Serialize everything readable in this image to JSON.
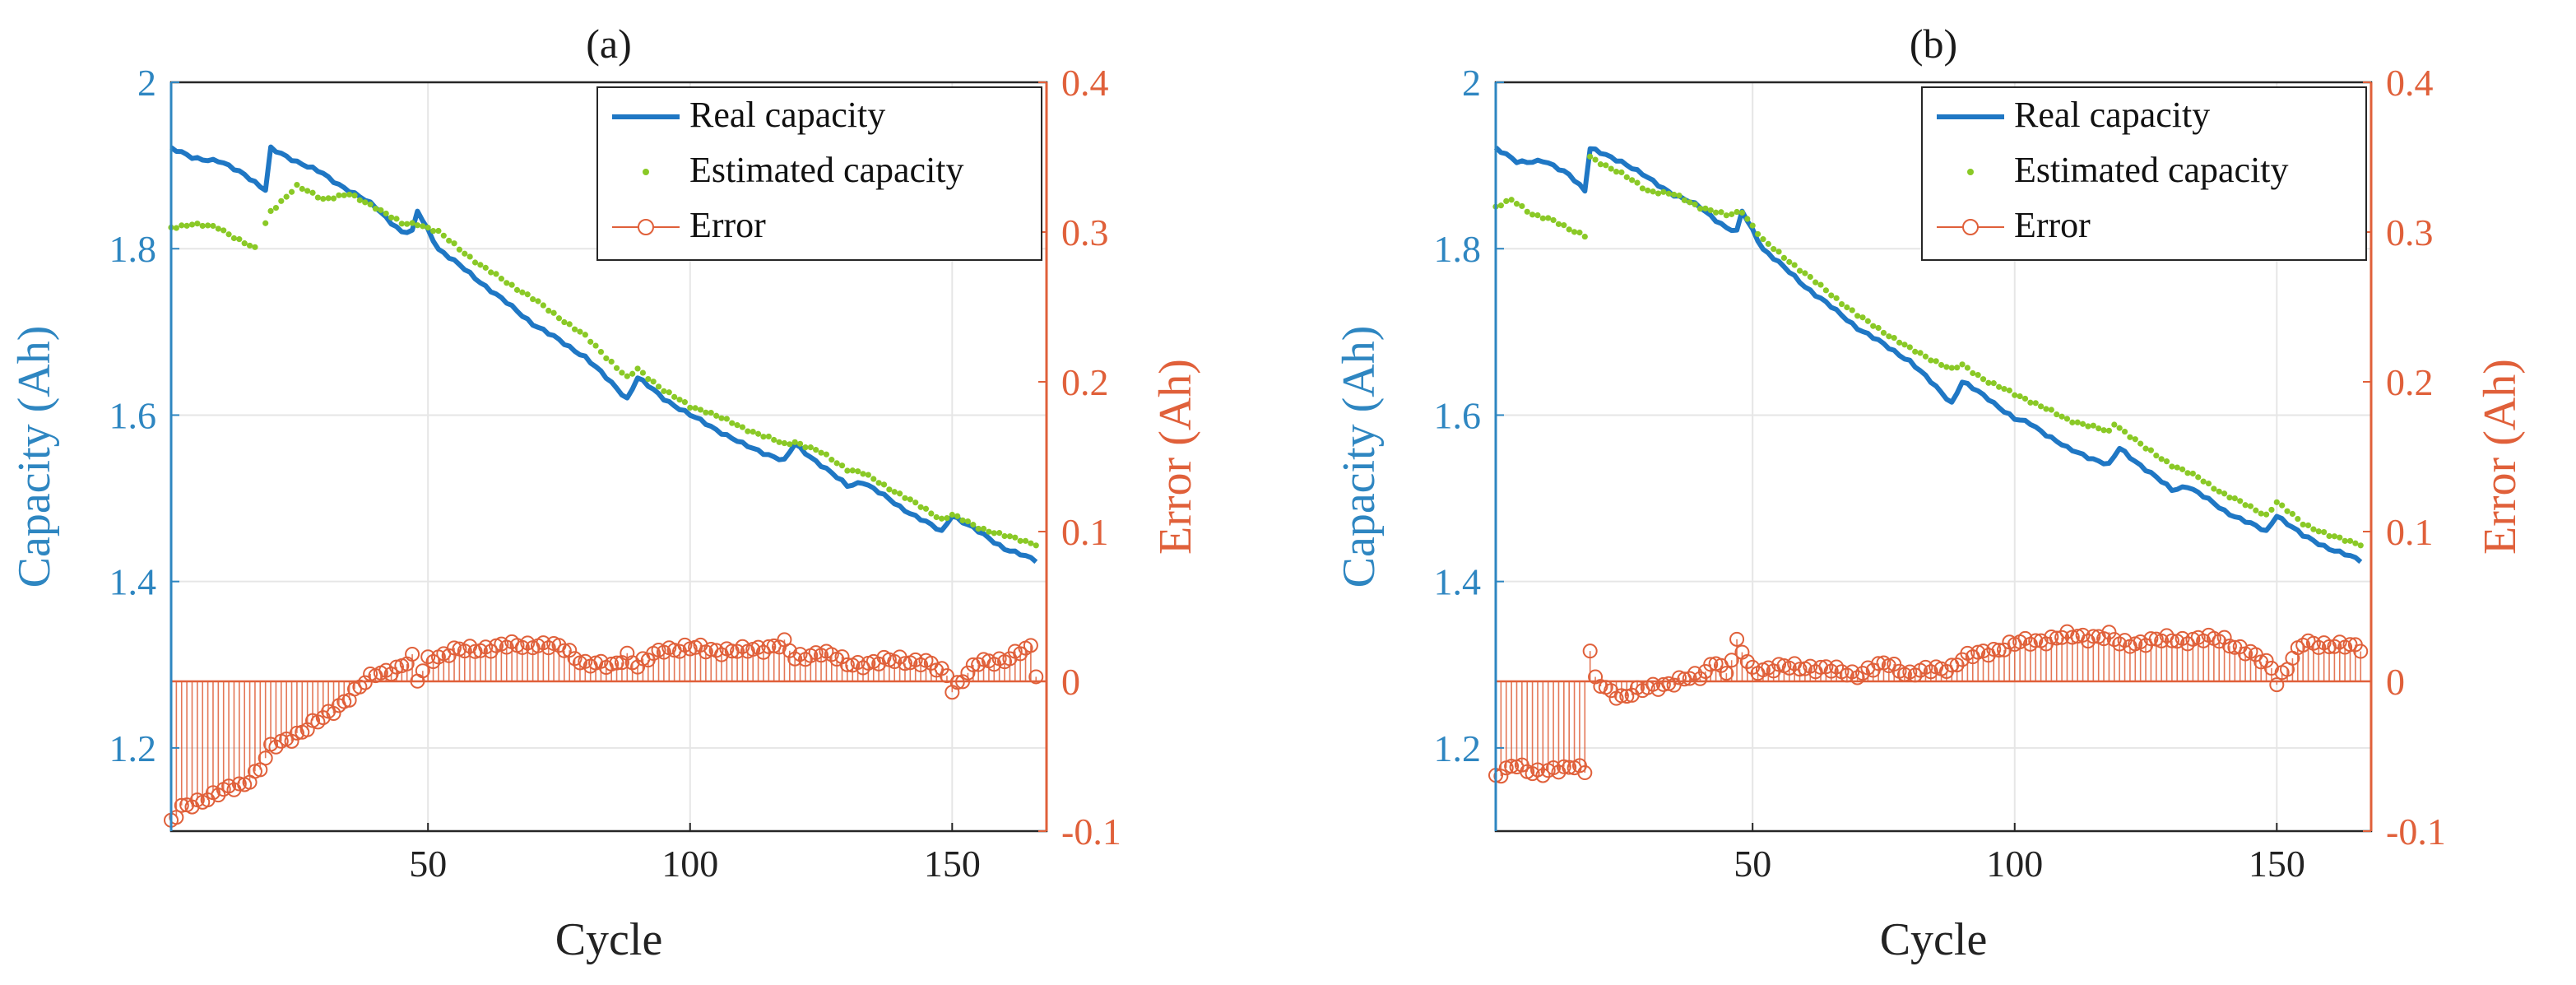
{
  "chart_data": [
    {
      "type": "line",
      "title": "(a)",
      "xlabel": "Cycle",
      "ylabel_left": "Capacity (Ah)",
      "ylabel_right": "Error (Ah)",
      "xlim": [
        1,
        168
      ],
      "ylim_left": [
        1.1,
        2.0
      ],
      "ylim_right": [
        -0.1,
        0.4
      ],
      "xticks": [
        "50",
        "100",
        "150"
      ],
      "yticks_left": [
        "1.2",
        "1.4",
        "1.6",
        "1.8",
        "2"
      ],
      "yticks_right": [
        "-0.1",
        "0",
        "0.1",
        "0.2",
        "0.3",
        "0.4"
      ],
      "grid": true,
      "legend": {
        "position": "top-right",
        "entries": [
          "Real capacity",
          "Estimated capacity",
          "Error"
        ]
      },
      "colors": {
        "real": "#1f77c4",
        "estimated": "#8ac926",
        "error": "#e0603a"
      },
      "real_anchors": [
        [
          1,
          1.92
        ],
        [
          5,
          1.91
        ],
        [
          10,
          1.905
        ],
        [
          15,
          1.89
        ],
        [
          19,
          1.87
        ],
        [
          20,
          1.92
        ],
        [
          25,
          1.905
        ],
        [
          30,
          1.89
        ],
        [
          31,
          1.885
        ],
        [
          35,
          1.87
        ],
        [
          40,
          1.85
        ],
        [
          45,
          1.82
        ],
        [
          47,
          1.82
        ],
        [
          48,
          1.845
        ],
        [
          52,
          1.8
        ],
        [
          60,
          1.76
        ],
        [
          70,
          1.71
        ],
        [
          80,
          1.67
        ],
        [
          88,
          1.62
        ],
        [
          90,
          1.645
        ],
        [
          95,
          1.62
        ],
        [
          100,
          1.6
        ],
        [
          103,
          1.59
        ],
        [
          110,
          1.565
        ],
        [
          118,
          1.545
        ],
        [
          120,
          1.565
        ],
        [
          125,
          1.54
        ],
        [
          130,
          1.515
        ],
        [
          133,
          1.52
        ],
        [
          140,
          1.49
        ],
        [
          148,
          1.46
        ],
        [
          150,
          1.48
        ],
        [
          155,
          1.46
        ],
        [
          160,
          1.44
        ],
        [
          166,
          1.425
        ]
      ],
      "estimated_anchors": [
        [
          1,
          1.825
        ],
        [
          5,
          1.83
        ],
        [
          10,
          1.825
        ],
        [
          17,
          1.8
        ],
        [
          20,
          1.845
        ],
        [
          25,
          1.875
        ],
        [
          30,
          1.86
        ],
        [
          35,
          1.865
        ],
        [
          40,
          1.85
        ],
        [
          45,
          1.83
        ],
        [
          48,
          1.83
        ],
        [
          52,
          1.82
        ],
        [
          60,
          1.78
        ],
        [
          70,
          1.74
        ],
        [
          80,
          1.695
        ],
        [
          88,
          1.645
        ],
        [
          90,
          1.655
        ],
        [
          95,
          1.63
        ],
        [
          100,
          1.61
        ],
        [
          103,
          1.605
        ],
        [
          110,
          1.585
        ],
        [
          118,
          1.565
        ],
        [
          120,
          1.568
        ],
        [
          125,
          1.555
        ],
        [
          130,
          1.535
        ],
        [
          133,
          1.53
        ],
        [
          140,
          1.505
        ],
        [
          148,
          1.475
        ],
        [
          150,
          1.48
        ],
        [
          155,
          1.465
        ],
        [
          160,
          1.455
        ],
        [
          166,
          1.445
        ]
      ],
      "estimated_gap": [
        17,
        19
      ],
      "error_anchors": [
        [
          1,
          -0.095
        ],
        [
          3,
          -0.085
        ],
        [
          6,
          -0.08
        ],
        [
          10,
          -0.075
        ],
        [
          15,
          -0.068
        ],
        [
          18,
          -0.058
        ],
        [
          20,
          -0.045
        ],
        [
          25,
          -0.035
        ],
        [
          30,
          -0.025
        ],
        [
          35,
          -0.01
        ],
        [
          40,
          0.005
        ],
        [
          45,
          0.01
        ],
        [
          47,
          0.015
        ],
        [
          48,
          0.0
        ],
        [
          50,
          0.015
        ],
        [
          55,
          0.02
        ],
        [
          60,
          0.022
        ],
        [
          70,
          0.025
        ],
        [
          76,
          0.022
        ],
        [
          80,
          0.012
        ],
        [
          85,
          0.01
        ],
        [
          88,
          0.018
        ],
        [
          90,
          0.01
        ],
        [
          95,
          0.022
        ],
        [
          100,
          0.022
        ],
        [
          110,
          0.02
        ],
        [
          118,
          0.025
        ],
        [
          120,
          0.015
        ],
        [
          125,
          0.02
        ],
        [
          130,
          0.012
        ],
        [
          135,
          0.012
        ],
        [
          140,
          0.015
        ],
        [
          145,
          0.012
        ],
        [
          149,
          0.005
        ],
        [
          150,
          -0.005
        ],
        [
          155,
          0.012
        ],
        [
          160,
          0.015
        ],
        [
          165,
          0.022
        ],
        [
          166,
          0.005
        ]
      ]
    },
    {
      "type": "line",
      "title": "(b)",
      "xlabel": "Cycle",
      "ylabel_left": "Capacity (Ah)",
      "ylabel_right": "Error (Ah)",
      "xlim": [
        1,
        168
      ],
      "ylim_left": [
        1.1,
        2.0
      ],
      "ylim_right": [
        -0.1,
        0.4
      ],
      "xticks": [
        "50",
        "100",
        "150"
      ],
      "yticks_left": [
        "1.2",
        "1.4",
        "1.6",
        "1.8",
        "2"
      ],
      "yticks_right": [
        "-0.1",
        "0",
        "0.1",
        "0.2",
        "0.3",
        "0.4"
      ],
      "grid": true,
      "legend": {
        "position": "top-right",
        "entries": [
          "Real capacity",
          "Estimated capacity",
          "Error"
        ]
      },
      "colors": {
        "real": "#1f77c4",
        "estimated": "#8ac926",
        "error": "#e0603a"
      },
      "real_anchors": [
        [
          1,
          1.92
        ],
        [
          5,
          1.905
        ],
        [
          10,
          1.905
        ],
        [
          15,
          1.89
        ],
        [
          18,
          1.87
        ],
        [
          19,
          1.92
        ],
        [
          25,
          1.905
        ],
        [
          30,
          1.885
        ],
        [
          35,
          1.865
        ],
        [
          40,
          1.85
        ],
        [
          45,
          1.825
        ],
        [
          47,
          1.82
        ],
        [
          48,
          1.845
        ],
        [
          52,
          1.8
        ],
        [
          60,
          1.755
        ],
        [
          70,
          1.705
        ],
        [
          80,
          1.665
        ],
        [
          88,
          1.615
        ],
        [
          90,
          1.64
        ],
        [
          95,
          1.62
        ],
        [
          100,
          1.595
        ],
        [
          103,
          1.59
        ],
        [
          110,
          1.56
        ],
        [
          118,
          1.54
        ],
        [
          120,
          1.56
        ],
        [
          125,
          1.535
        ],
        [
          130,
          1.51
        ],
        [
          133,
          1.515
        ],
        [
          140,
          1.485
        ],
        [
          148,
          1.46
        ],
        [
          150,
          1.48
        ],
        [
          155,
          1.455
        ],
        [
          160,
          1.44
        ],
        [
          166,
          1.425
        ]
      ],
      "estimated_anchors": [
        [
          1,
          1.85
        ],
        [
          4,
          1.86
        ],
        [
          8,
          1.84
        ],
        [
          12,
          1.835
        ],
        [
          16,
          1.82
        ],
        [
          18,
          1.815
        ],
        [
          19,
          1.91
        ],
        [
          25,
          1.89
        ],
        [
          30,
          1.87
        ],
        [
          35,
          1.865
        ],
        [
          40,
          1.85
        ],
        [
          45,
          1.84
        ],
        [
          48,
          1.845
        ],
        [
          52,
          1.81
        ],
        [
          60,
          1.77
        ],
        [
          70,
          1.72
        ],
        [
          80,
          1.68
        ],
        [
          88,
          1.655
        ],
        [
          90,
          1.66
        ],
        [
          95,
          1.64
        ],
        [
          100,
          1.625
        ],
        [
          102,
          1.62
        ],
        [
          110,
          1.595
        ],
        [
          118,
          1.58
        ],
        [
          119,
          1.59
        ],
        [
          125,
          1.56
        ],
        [
          130,
          1.54
        ],
        [
          135,
          1.525
        ],
        [
          140,
          1.505
        ],
        [
          148,
          1.48
        ],
        [
          150,
          1.495
        ],
        [
          155,
          1.47
        ],
        [
          160,
          1.455
        ],
        [
          166,
          1.445
        ]
      ],
      "estimated_gap": [
        18,
        19
      ],
      "error_anchors": [
        [
          1,
          -0.065
        ],
        [
          3,
          -0.06
        ],
        [
          5,
          -0.055
        ],
        [
          8,
          -0.06
        ],
        [
          10,
          -0.062
        ],
        [
          12,
          -0.06
        ],
        [
          14,
          -0.058
        ],
        [
          16,
          -0.055
        ],
        [
          18,
          -0.06
        ],
        [
          19,
          0.02
        ],
        [
          20,
          0.0
        ],
        [
          22,
          -0.005
        ],
        [
          25,
          -0.01
        ],
        [
          30,
          -0.005
        ],
        [
          35,
          0.0
        ],
        [
          40,
          0.003
        ],
        [
          43,
          0.015
        ],
        [
          45,
          0.005
        ],
        [
          47,
          0.025
        ],
        [
          50,
          0.008
        ],
        [
          60,
          0.01
        ],
        [
          70,
          0.005
        ],
        [
          76,
          0.012
        ],
        [
          80,
          0.005
        ],
        [
          88,
          0.01
        ],
        [
          90,
          0.015
        ],
        [
          100,
          0.025
        ],
        [
          110,
          0.03
        ],
        [
          118,
          0.03
        ],
        [
          120,
          0.025
        ],
        [
          130,
          0.028
        ],
        [
          140,
          0.028
        ],
        [
          149,
          0.01
        ],
        [
          150,
          0.0
        ],
        [
          155,
          0.025
        ],
        [
          160,
          0.025
        ],
        [
          166,
          0.022
        ]
      ]
    }
  ]
}
